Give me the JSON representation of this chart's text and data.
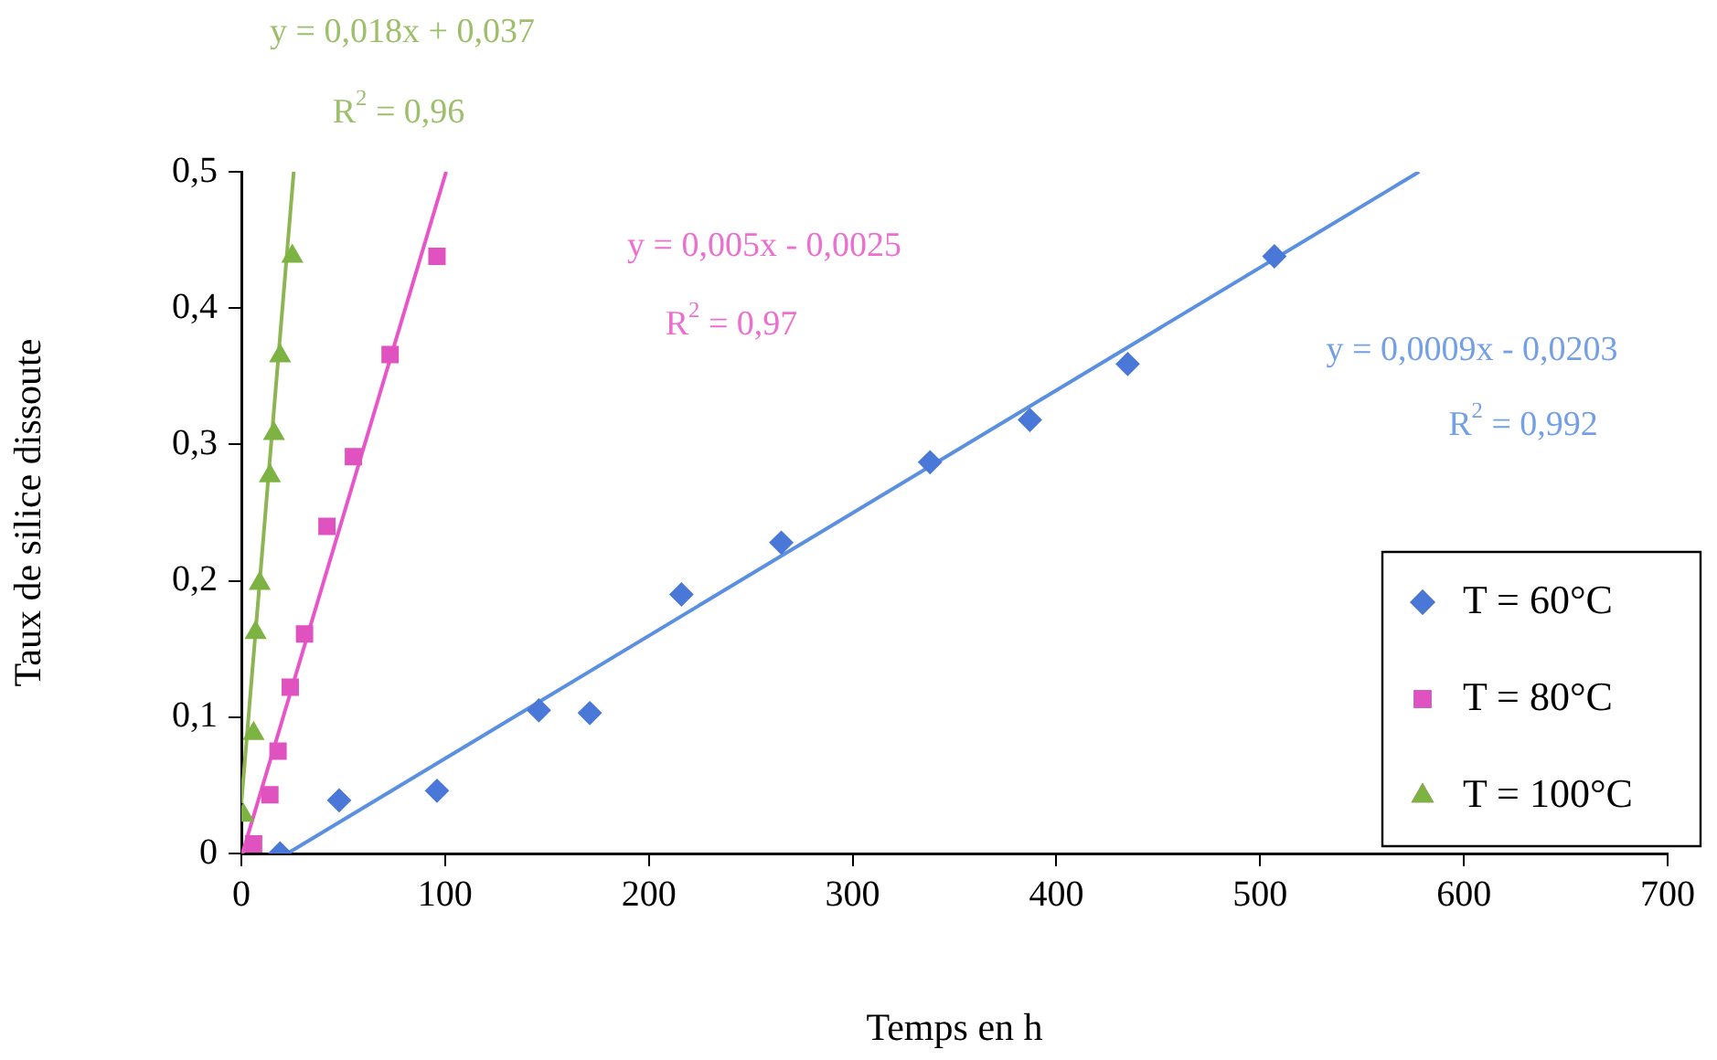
{
  "chart_data": {
    "type": "scatter",
    "xlabel": "Temps en h",
    "ylabel": "Taux de silice dissoute",
    "xlim": [
      0,
      700
    ],
    "xticks": [
      0,
      100,
      200,
      300,
      400,
      500,
      600,
      700
    ],
    "ylim": [
      0,
      0.5
    ],
    "yticks": [
      {
        "value": 0,
        "label": "0"
      },
      {
        "value": 0.1,
        "label": "0,1"
      },
      {
        "value": 0.2,
        "label": "0,2"
      },
      {
        "value": 0.3,
        "label": "0,3"
      },
      {
        "value": 0.4,
        "label": "0,4"
      },
      {
        "value": 0.5,
        "label": "0,5"
      }
    ],
    "grid": false,
    "legend": "bottom right",
    "series": [
      {
        "name": "T = 60°C",
        "color": "#4a78d8",
        "marker": "diamond",
        "x": [
          19,
          48,
          96,
          146,
          171,
          216,
          265,
          338,
          387,
          435,
          507
        ],
        "values": [
          0.0,
          0.039,
          0.046,
          0.105,
          0.103,
          0.19,
          0.228,
          0.287,
          0.318,
          0.359,
          0.438
        ]
      },
      {
        "name": "T = 80°C",
        "color": "#e052c0",
        "marker": "square",
        "x": [
          6,
          14,
          18,
          24,
          31,
          42,
          55,
          73,
          96
        ],
        "values": [
          0.007,
          0.043,
          0.075,
          0.122,
          0.161,
          0.24,
          0.291,
          0.366,
          0.438
        ]
      },
      {
        "name": "T = 100°C",
        "color": "#7cb342",
        "marker": "triangle",
        "x": [
          1,
          6,
          7,
          9,
          14,
          16,
          19,
          25
        ],
        "values": [
          0.028,
          0.088,
          0.162,
          0.198,
          0.277,
          0.308,
          0.365,
          0.438
        ]
      },
      {
        "type": "line",
        "color": "#5b8fe0",
        "marker": "none",
        "x": [
          22.6,
          578
        ],
        "values": [
          0,
          0.5
        ]
      },
      {
        "type": "line",
        "color": "#e855c8",
        "marker": "none",
        "x": [
          0.5,
          100.5
        ],
        "values": [
          0,
          0.5
        ]
      },
      {
        "type": "line",
        "color": "#8db552",
        "marker": "none",
        "x": [
          0,
          25.7
        ],
        "values": [
          0.037,
          0.5
        ]
      }
    ],
    "annotations": [
      "y = 0,018x + 0,037",
      "R$^{2}$ = 0,96",
      "y = 0,005x - 0,0025",
      "R$^{2}$ = 0,97",
      "y = 0,0009x - 0,0203",
      "R$^{2}$ = 0,992"
    ]
  }
}
